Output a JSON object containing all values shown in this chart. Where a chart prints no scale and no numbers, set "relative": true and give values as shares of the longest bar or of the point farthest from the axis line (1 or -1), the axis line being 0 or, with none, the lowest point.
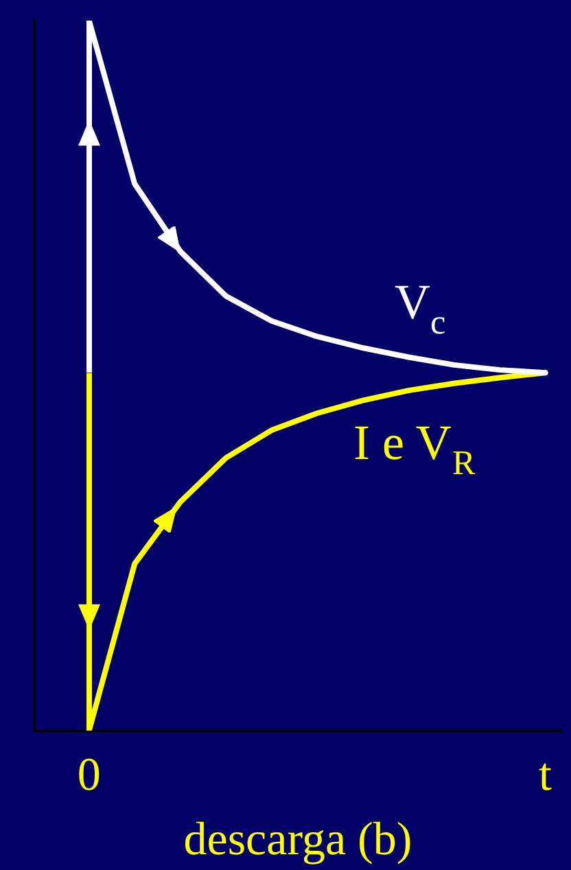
{
  "chart_data": {
    "type": "line",
    "relative": true,
    "xlabel": "descarga (b)",
    "categories": [
      "0",
      null,
      null,
      null,
      null,
      null,
      null,
      null,
      null,
      null,
      "t"
    ],
    "series": [
      {
        "name": "V$_{c}$",
        "color": "#ffffff",
        "values": [
          1,
          0.77,
          0.675,
          0.612,
          0.577,
          0.555,
          0.539,
          0.526,
          0.515,
          0.508,
          0.504
        ]
      },
      {
        "name": "I e V$_{R}$",
        "color": "#ffff00",
        "values": [
          0,
          0.235,
          0.322,
          0.384,
          0.423,
          0.447,
          0.465,
          0.479,
          0.489,
          0.497,
          0.504
        ]
      }
    ],
    "legend": false,
    "grid": false,
    "marker": "none",
    "line_style": "solid"
  }
}
